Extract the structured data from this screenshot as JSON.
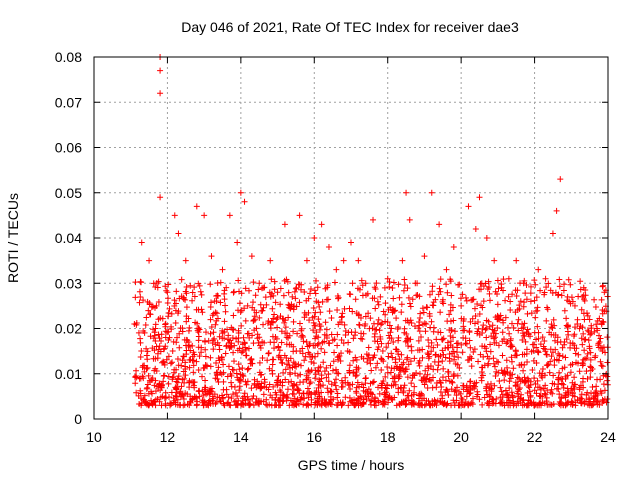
{
  "chart_data": {
    "type": "scatter",
    "title": "Day 046 of 2021, Rate Of TEC Index for receiver dae3",
    "xlabel": "GPS time / hours",
    "ylabel": "ROTI / TECUs",
    "xlim": [
      10,
      24
    ],
    "ylim": [
      0,
      0.08
    ],
    "xticks": [
      10,
      12,
      14,
      16,
      18,
      20,
      22,
      24
    ],
    "yticks": [
      0,
      0.01,
      0.02,
      0.03,
      0.04,
      0.05,
      0.06,
      0.07,
      0.08
    ],
    "xtick_labels": [
      "10",
      "12",
      "14",
      "16",
      "18",
      "20",
      "22",
      "24"
    ],
    "ytick_labels": [
      "0",
      "0.01",
      "0.02",
      "0.03",
      "0.04",
      "0.05",
      "0.06",
      "0.07",
      "0.08"
    ],
    "grid": true,
    "marker": "plus",
    "color": "#ff0000",
    "series": [
      {
        "x": [
          11.1,
          11.3,
          11.5,
          11.7,
          11.8,
          11.8,
          11.8,
          11.8,
          12.0,
          12.2,
          12.3,
          12.5,
          12.8,
          13.0,
          13.2,
          13.5,
          13.7,
          13.9,
          14.0,
          14.1,
          14.3,
          14.5,
          14.8,
          15.0,
          15.2,
          15.4,
          15.6,
          15.8,
          16.0,
          16.2,
          16.4,
          16.6,
          16.8,
          17.0,
          17.2,
          17.4,
          17.6,
          17.8,
          18.0,
          18.2,
          18.4,
          18.5,
          18.6,
          18.8,
          19.0,
          19.2,
          19.4,
          19.6,
          19.8,
          20.0,
          20.2,
          20.4,
          20.5,
          20.7,
          20.9,
          21.1,
          21.3,
          21.5,
          21.7,
          21.9,
          22.1,
          22.3,
          22.5,
          22.6,
          22.7,
          22.9,
          23.1,
          23.3,
          23.5,
          23.7,
          23.9
        ],
        "y": [
          0.021,
          0.039,
          0.035,
          0.025,
          0.08,
          0.077,
          0.072,
          0.049,
          0.028,
          0.045,
          0.041,
          0.035,
          0.047,
          0.045,
          0.036,
          0.033,
          0.045,
          0.039,
          0.05,
          0.048,
          0.036,
          0.03,
          0.035,
          0.028,
          0.043,
          0.027,
          0.045,
          0.035,
          0.04,
          0.043,
          0.038,
          0.033,
          0.035,
          0.039,
          0.035,
          0.03,
          0.044,
          0.027,
          0.031,
          0.024,
          0.035,
          0.05,
          0.044,
          0.03,
          0.036,
          0.05,
          0.043,
          0.033,
          0.038,
          0.025,
          0.047,
          0.042,
          0.049,
          0.04,
          0.035,
          0.029,
          0.031,
          0.035,
          0.03,
          0.026,
          0.033,
          0.031,
          0.041,
          0.046,
          0.053,
          0.027,
          0.025,
          0.027,
          0.022,
          0.02,
          0.028
        ]
      }
    ]
  }
}
